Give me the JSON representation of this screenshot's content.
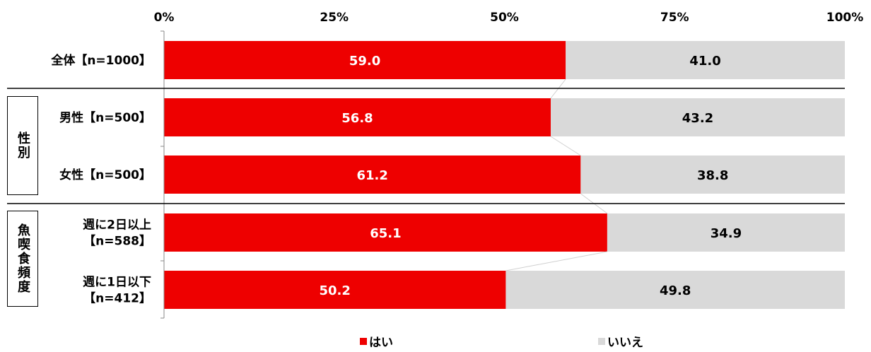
{
  "chart_data": {
    "type": "bar",
    "orientation": "horizontal",
    "stacked": "percent",
    "x_ticks": [
      "0%",
      "25%",
      "50%",
      "75%",
      "100%"
    ],
    "xlim": [
      0,
      100
    ],
    "categories": [
      {
        "key": "all",
        "label_lines": [
          "全体【n=1000】"
        ]
      },
      {
        "key": "male",
        "label_lines": [
          "男性【n=500】"
        ]
      },
      {
        "key": "female",
        "label_lines": [
          "女性【n=500】"
        ]
      },
      {
        "key": "freq_high",
        "label_lines": [
          "週に2日以上",
          "【n=588】"
        ]
      },
      {
        "key": "freq_low",
        "label_lines": [
          "週に1日以下",
          "【n=412】"
        ]
      }
    ],
    "series": [
      {
        "name": "はい",
        "color": "#ee0000",
        "values": [
          59.0,
          56.8,
          61.2,
          65.1,
          50.2
        ],
        "value_labels": [
          "59.0",
          "56.8",
          "61.2",
          "65.1",
          "50.2"
        ]
      },
      {
        "name": "いいえ",
        "color": "#d9d9d9",
        "values": [
          41.0,
          43.2,
          38.8,
          34.9,
          49.8
        ],
        "value_labels": [
          "41.0",
          "43.2",
          "38.8",
          "34.9",
          "49.8"
        ]
      }
    ],
    "groups": [
      {
        "label": "性別",
        "categories": [
          "male",
          "female"
        ]
      },
      {
        "label": "魚喫食頻度",
        "categories": [
          "freq_high",
          "freq_low"
        ]
      }
    ],
    "legend_position": "bottom",
    "grid": false
  }
}
